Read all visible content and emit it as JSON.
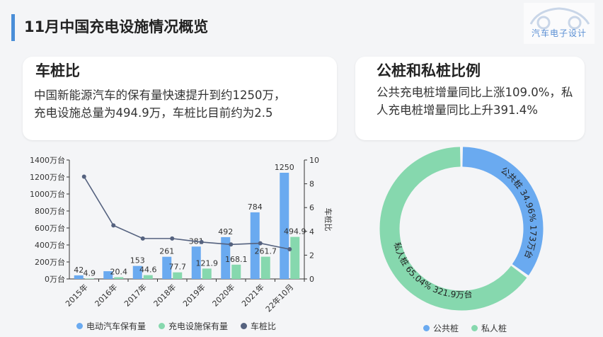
{
  "header": {
    "title": "11月中国充电设施情况概览",
    "logo_text": "汽车电子设计"
  },
  "card_left": {
    "title": "车桩比",
    "text_line1": "中国新能源汽车的保有量快速提升到约1250万，",
    "text_line2": "充电设施总量为494.9万，车桩比目前约为2.5"
  },
  "card_right": {
    "title": "公桩和私桩比例",
    "text": "公共充电桩增量同比上涨109.0%，私人充电桩增量同比上升391.4%"
  },
  "colors": {
    "ev": "#6aaaf0",
    "charger": "#86d8ae",
    "ratio": "#55627f",
    "public": "#6aaaf0",
    "private": "#86d8ae"
  },
  "chart_data": [
    {
      "type": "bar",
      "categories": [
        "2015年",
        "2016年",
        "2017年",
        "2018年",
        "2019年",
        "2020年",
        "2021年",
        "22年10月"
      ],
      "series": [
        {
          "name": "电动汽车保有量",
          "values": [
            42,
            91,
            153,
            261,
            381,
            492,
            784,
            1250
          ],
          "labels": [
            "42",
            "",
            "153",
            "261",
            "381",
            "492",
            "784",
            "1250"
          ]
        },
        {
          "name": "充电设施保有量",
          "values": [
            4.9,
            20.4,
            44.6,
            77.7,
            121.9,
            168.1,
            261.7,
            494.9
          ],
          "labels": [
            "4.9",
            "20.4",
            "44.6",
            "77.7",
            "121.9",
            "168.1",
            "261.7",
            "494.9"
          ]
        },
        {
          "name": "车桩比",
          "type": "line",
          "axis": "right",
          "values": [
            8.6,
            4.5,
            3.4,
            3.4,
            3.1,
            2.9,
            3.0,
            2.5
          ]
        }
      ],
      "y_left": {
        "ylim": [
          0,
          1400
        ],
        "ticks": [
          "0万台",
          "200万台",
          "400万台",
          "600万台",
          "800万台",
          "1000万台",
          "1200万台",
          "1400万台"
        ]
      },
      "y_right": {
        "label": "车桩比",
        "ylim": [
          0,
          10
        ],
        "ticks": [
          "0",
          "2",
          "4",
          "6",
          "8",
          "10"
        ]
      },
      "legend": "bottom"
    },
    {
      "type": "pie",
      "donut": true,
      "slices": [
        {
          "name": "公共桩",
          "value": 173,
          "percent": "34.96%",
          "label": "公共桩  34.96%  173万台"
        },
        {
          "name": "私人桩",
          "value": 321.9,
          "percent": "65.04%",
          "label": "私人桩  65.04%  321.9万台"
        }
      ],
      "legend": "bottom"
    }
  ]
}
